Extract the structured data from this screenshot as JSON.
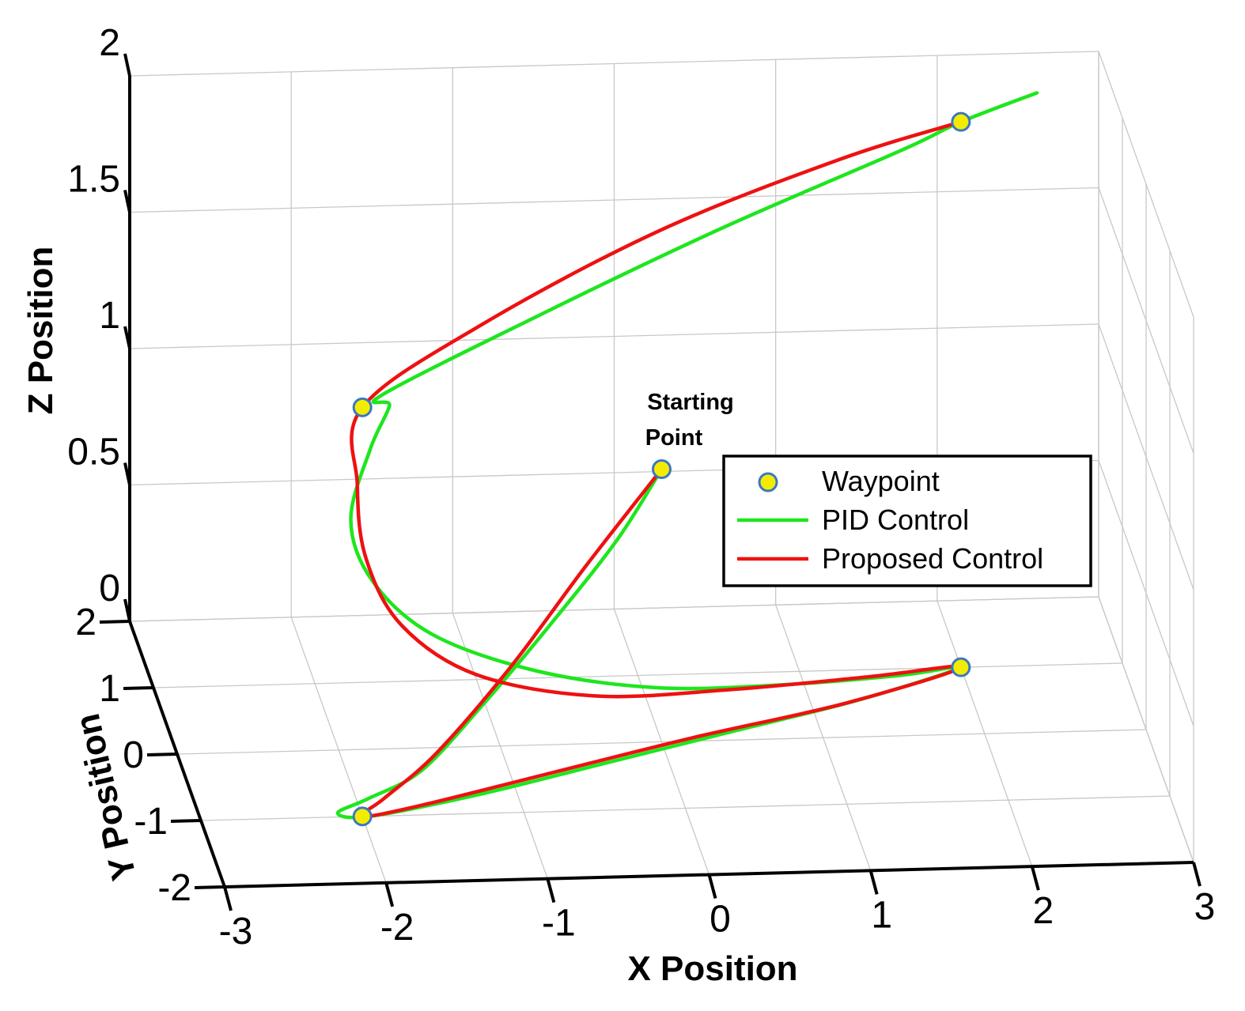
{
  "chart_data": {
    "type": "line",
    "view": "3d",
    "xlabel": "X Position",
    "ylabel": "Y Position",
    "zlabel": "Z Position",
    "xlim": [
      -3,
      3
    ],
    "ylim": [
      -2,
      2
    ],
    "zlim": [
      0,
      2
    ],
    "x_ticks": [
      "-3",
      "-2",
      "-1",
      "0",
      "1",
      "2",
      "3"
    ],
    "y_ticks": [
      "2",
      "1",
      "0",
      "-1",
      "-2"
    ],
    "z_ticks": [
      "2",
      "1.5",
      "1",
      "0.5",
      "0"
    ],
    "grid": true,
    "legend": {
      "position": "right",
      "items": [
        {
          "label": "Waypoint",
          "kind": "marker",
          "color": "#f4ec00",
          "edge": "#3a78c0"
        },
        {
          "label": "PID Control",
          "kind": "line",
          "color": "#1ee61e"
        },
        {
          "label": "Proposed Control",
          "kind": "line",
          "color": "#ee1111"
        }
      ]
    },
    "annotation": {
      "text_line1": "Starting",
      "text_line2": "Point"
    },
    "waypoints": [
      {
        "x": 0,
        "y": 0,
        "z": 1
      },
      {
        "x": -2,
        "y": -1,
        "z": 0
      },
      {
        "x": 2,
        "y": 1,
        "z": 0
      },
      {
        "x": -2,
        "y": -1,
        "z": 1.5
      },
      {
        "x": 2,
        "y": 1,
        "z": 2
      }
    ],
    "series": [
      {
        "name": "PID Control",
        "color": "#1ee61e",
        "points": [
          [
            0.0,
            0.0,
            1.0
          ],
          [
            -0.3,
            -0.15,
            0.78
          ],
          [
            -0.75,
            -0.35,
            0.52
          ],
          [
            -1.2,
            -0.55,
            0.28
          ],
          [
            -1.6,
            -0.75,
            0.1
          ],
          [
            -1.95,
            -0.9,
            0.04
          ],
          [
            -2.15,
            -0.98,
            0.01
          ],
          [
            -1.95,
            -1.0,
            0.0
          ],
          [
            -1.2,
            -0.7,
            0.0
          ],
          [
            -0.4,
            -0.3,
            0.0
          ],
          [
            0.5,
            0.15,
            0.0
          ],
          [
            1.3,
            0.55,
            0.0
          ],
          [
            2.0,
            1.0,
            0.0
          ],
          [
            1.6,
            0.9,
            0.0
          ],
          [
            0.8,
            0.6,
            0.05
          ],
          [
            0.0,
            0.2,
            0.15
          ],
          [
            -0.8,
            -0.2,
            0.32
          ],
          [
            -1.5,
            -0.55,
            0.55
          ],
          [
            -1.9,
            -0.75,
            0.8
          ],
          [
            -2.05,
            -0.85,
            1.05
          ],
          [
            -1.92,
            -0.8,
            1.3
          ],
          [
            -1.8,
            -0.78,
            1.45
          ],
          [
            -1.85,
            -0.82,
            1.5
          ],
          [
            -0.8,
            -0.3,
            1.65
          ],
          [
            0.4,
            0.3,
            1.8
          ],
          [
            1.6,
            0.8,
            1.95
          ],
          [
            2.0,
            1.0,
            2.0
          ],
          [
            2.5,
            1.2,
            2.05
          ]
        ]
      },
      {
        "name": "Proposed Control",
        "color": "#ee1111",
        "points": [
          [
            0.0,
            0.0,
            1.0
          ],
          [
            -0.5,
            -0.2,
            0.7
          ],
          [
            -1.0,
            -0.45,
            0.4
          ],
          [
            -1.5,
            -0.7,
            0.15
          ],
          [
            -1.85,
            -0.9,
            0.04
          ],
          [
            -2.0,
            -1.0,
            0.0
          ],
          [
            -1.6,
            -0.85,
            0.0
          ],
          [
            -0.8,
            -0.45,
            0.0
          ],
          [
            0.2,
            0.05,
            0.0
          ],
          [
            1.2,
            0.5,
            0.0
          ],
          [
            2.0,
            1.0,
            0.0
          ],
          [
            1.4,
            0.85,
            0.01
          ],
          [
            0.5,
            0.55,
            0.05
          ],
          [
            -0.4,
            0.1,
            0.15
          ],
          [
            -1.2,
            -0.35,
            0.35
          ],
          [
            -1.7,
            -0.6,
            0.6
          ],
          [
            -1.95,
            -0.8,
            0.9
          ],
          [
            -2.02,
            -0.92,
            1.2
          ],
          [
            -2.0,
            -1.0,
            1.5
          ],
          [
            -1.2,
            -0.55,
            1.68
          ],
          [
            0.0,
            0.1,
            1.85
          ],
          [
            1.2,
            0.65,
            1.96
          ],
          [
            2.0,
            1.0,
            2.0
          ]
        ]
      }
    ]
  }
}
